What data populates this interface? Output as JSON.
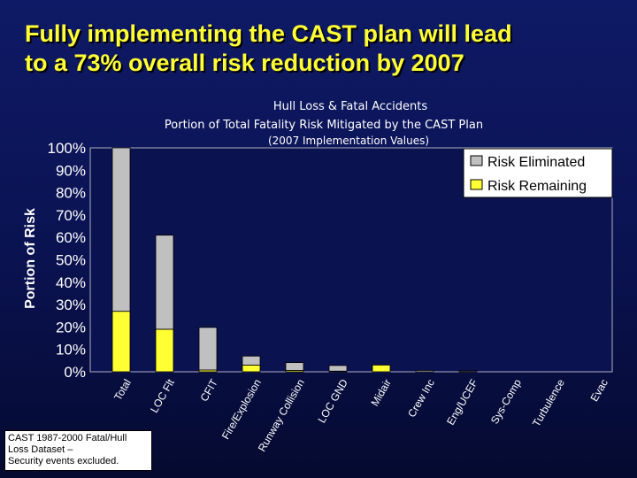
{
  "slide_title": "Fully implementing the CAST plan will lead\nto a 73% overall risk reduction by 2007",
  "note": "CAST 1987-2000 Fatal/Hull\nLoss Dataset –\nSecurity events excluded.",
  "colors": {
    "background": "#0a1250",
    "title": "#ffff33",
    "risk_eliminated": "#c0c0c0",
    "risk_remaining": "#ffff33",
    "plot_area": "#0a1250"
  },
  "chart_data": {
    "type": "bar",
    "stacked": true,
    "title": "Hull Loss & Fatal Accidents",
    "subtitle": "Portion of Total Fatality Risk Mitigated by the CAST  Plan",
    "subtitle2": "(2007 Implementation Values)",
    "xlabel": "",
    "ylabel": "Portion of Risk",
    "ylim": [
      0,
      100
    ],
    "yticks": [
      "0%",
      "10%",
      "20%",
      "30%",
      "40%",
      "50%",
      "60%",
      "70%",
      "80%",
      "90%",
      "100%"
    ],
    "grid": false,
    "legend_position": "top-right",
    "categories": [
      "Total",
      "LOC Flt",
      "CFIT",
      "Fire/Explosion",
      "Runway Collision",
      "LOC GND",
      "Midair",
      "Crew Inc",
      "Eng/UCEF",
      "Sys-Comp",
      "Turbulence",
      "Evac"
    ],
    "series": [
      {
        "name": "Risk Eliminated",
        "color": "#c0c0c0",
        "values": [
          73,
          42,
          19,
          4,
          3.5,
          2.5,
          0,
          0.6,
          0.4,
          0,
          0,
          0
        ]
      },
      {
        "name": "Risk Remaining",
        "color": "#ffff33",
        "values": [
          27,
          19,
          0.8,
          3,
          0.6,
          0.3,
          3,
          0,
          0,
          0,
          0,
          0
        ]
      }
    ]
  }
}
